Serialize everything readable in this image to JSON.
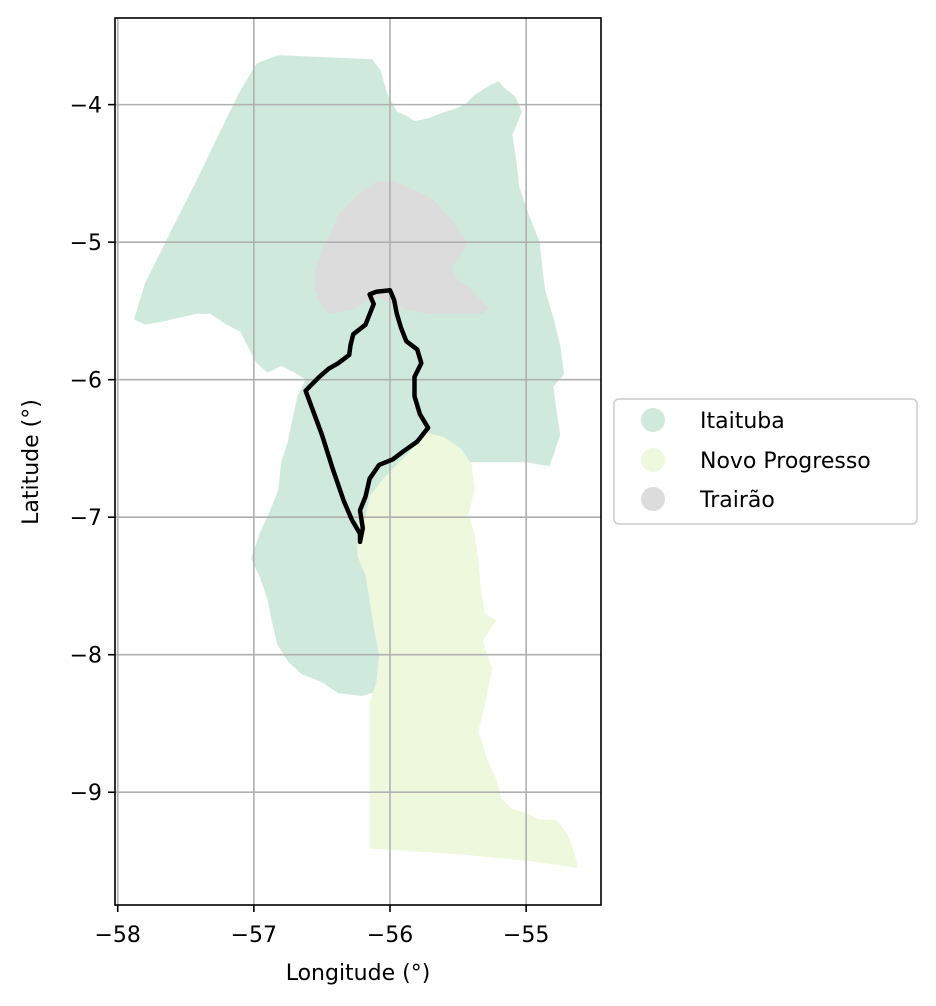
{
  "chart_data": {
    "type": "map",
    "xlabel": "Longitude (°)",
    "ylabel": "Latitude (°)",
    "xlim": [
      -58.02,
      -54.45
    ],
    "ylim": [
      -9.82,
      -3.37
    ],
    "xticks": [
      -58,
      -57,
      -56,
      -55
    ],
    "yticks": [
      -4,
      -5,
      -6,
      -7,
      -8,
      -9
    ],
    "xtick_labels": [
      "−58",
      "−57",
      "−56",
      "−55"
    ],
    "ytick_labels": [
      "−4",
      "−5",
      "−6",
      "−7",
      "−8",
      "−9"
    ],
    "grid": true,
    "legend_position": "right",
    "regions": [
      {
        "name": "Itaituba",
        "color": "#cfeadd",
        "polygons": [
          [
            [
              -56.13,
              -3.67
            ],
            [
              -56.07,
              -3.75
            ],
            [
              -56.02,
              -3.92
            ],
            [
              -55.95,
              -4.05
            ],
            [
              -55.88,
              -4.08
            ],
            [
              -55.82,
              -4.12
            ],
            [
              -55.72,
              -4.1
            ],
            [
              -55.62,
              -4.06
            ],
            [
              -55.52,
              -4.03
            ],
            [
              -55.45,
              -4.0
            ],
            [
              -55.38,
              -3.93
            ],
            [
              -55.3,
              -3.88
            ],
            [
              -55.25,
              -3.85
            ],
            [
              -55.2,
              -3.83
            ],
            [
              -55.17,
              -3.87
            ],
            [
              -55.08,
              -3.94
            ],
            [
              -55.03,
              -4.05
            ],
            [
              -55.1,
              -4.22
            ],
            [
              -55.07,
              -4.42
            ],
            [
              -55.05,
              -4.6
            ],
            [
              -54.98,
              -4.8
            ],
            [
              -54.9,
              -5.0
            ],
            [
              -54.88,
              -5.2
            ],
            [
              -54.86,
              -5.35
            ],
            [
              -54.8,
              -5.55
            ],
            [
              -54.75,
              -5.75
            ],
            [
              -54.72,
              -5.96
            ],
            [
              -54.8,
              -6.05
            ],
            [
              -54.78,
              -6.2
            ],
            [
              -54.75,
              -6.4
            ],
            [
              -54.8,
              -6.55
            ],
            [
              -54.83,
              -6.63
            ],
            [
              -55.0,
              -6.6
            ],
            [
              -55.1,
              -6.6
            ],
            [
              -55.5,
              -6.6
            ],
            [
              -55.5,
              -6.8
            ],
            [
              -55.62,
              -7.0
            ],
            [
              -55.71,
              -7.18
            ],
            [
              -55.78,
              -7.35
            ],
            [
              -55.72,
              -7.55
            ],
            [
              -55.73,
              -7.8
            ],
            [
              -55.7,
              -8.0
            ],
            [
              -55.75,
              -8.3
            ],
            [
              -55.82,
              -8.37
            ],
            [
              -55.92,
              -8.32
            ],
            [
              -56.05,
              -8.25
            ],
            [
              -56.2,
              -8.3
            ],
            [
              -56.38,
              -8.28
            ],
            [
              -56.5,
              -8.2
            ],
            [
              -56.65,
              -8.14
            ],
            [
              -56.75,
              -8.05
            ],
            [
              -56.83,
              -7.92
            ],
            [
              -56.87,
              -7.75
            ],
            [
              -56.9,
              -7.6
            ],
            [
              -56.95,
              -7.45
            ],
            [
              -57.02,
              -7.3
            ],
            [
              -56.95,
              -7.1
            ],
            [
              -56.88,
              -6.95
            ],
            [
              -56.82,
              -6.8
            ],
            [
              -56.8,
              -6.6
            ],
            [
              -56.75,
              -6.45
            ],
            [
              -56.72,
              -6.3
            ],
            [
              -56.68,
              -6.12
            ],
            [
              -56.62,
              -6.0
            ],
            [
              -56.7,
              -5.95
            ],
            [
              -56.8,
              -5.9
            ],
            [
              -56.9,
              -5.95
            ],
            [
              -56.98,
              -5.88
            ],
            [
              -57.05,
              -5.75
            ],
            [
              -57.1,
              -5.65
            ],
            [
              -57.2,
              -5.6
            ],
            [
              -57.32,
              -5.52
            ],
            [
              -57.42,
              -5.52
            ],
            [
              -57.55,
              -5.55
            ],
            [
              -57.68,
              -5.58
            ],
            [
              -57.8,
              -5.6
            ],
            [
              -57.88,
              -5.56
            ],
            [
              -57.8,
              -5.3
            ],
            [
              -57.6,
              -4.9
            ],
            [
              -57.42,
              -4.55
            ],
            [
              -57.25,
              -4.2
            ],
            [
              -57.1,
              -3.9
            ],
            [
              -56.98,
              -3.7
            ],
            [
              -56.82,
              -3.64
            ],
            [
              -56.6,
              -3.65
            ],
            [
              -56.35,
              -3.66
            ]
          ]
        ]
      },
      {
        "name": "Novo Progresso",
        "color": "#eef8dc",
        "polygons": [
          [
            [
              -55.75,
              -6.38
            ],
            [
              -55.6,
              -6.42
            ],
            [
              -55.48,
              -6.5
            ],
            [
              -55.4,
              -6.62
            ],
            [
              -55.38,
              -6.8
            ],
            [
              -55.42,
              -6.98
            ],
            [
              -55.38,
              -7.12
            ],
            [
              -55.35,
              -7.32
            ],
            [
              -55.33,
              -7.55
            ],
            [
              -55.3,
              -7.7
            ],
            [
              -55.22,
              -7.75
            ],
            [
              -55.32,
              -7.9
            ],
            [
              -55.25,
              -8.1
            ],
            [
              -55.3,
              -8.35
            ],
            [
              -55.35,
              -8.55
            ],
            [
              -55.28,
              -8.78
            ],
            [
              -55.22,
              -8.9
            ],
            [
              -55.18,
              -9.05
            ],
            [
              -55.1,
              -9.12
            ],
            [
              -55.0,
              -9.15
            ],
            [
              -54.9,
              -9.2
            ],
            [
              -54.78,
              -9.2
            ],
            [
              -54.7,
              -9.3
            ],
            [
              -54.65,
              -9.42
            ],
            [
              -54.62,
              -9.55
            ],
            [
              -54.98,
              -9.5
            ],
            [
              -55.5,
              -9.45
            ],
            [
              -56.15,
              -9.41
            ],
            [
              -56.15,
              -9.0
            ],
            [
              -56.15,
              -8.6
            ],
            [
              -56.15,
              -8.35
            ],
            [
              -56.1,
              -8.2
            ],
            [
              -56.08,
              -8.0
            ],
            [
              -56.12,
              -7.8
            ],
            [
              -56.15,
              -7.6
            ],
            [
              -56.18,
              -7.42
            ],
            [
              -56.24,
              -7.28
            ],
            [
              -56.24,
              -7.14
            ],
            [
              -56.18,
              -7.0
            ],
            [
              -56.15,
              -6.85
            ],
            [
              -56.05,
              -6.72
            ],
            [
              -55.95,
              -6.62
            ],
            [
              -55.85,
              -6.52
            ]
          ]
        ]
      },
      {
        "name": "Trairão",
        "color": "#dcdcdc",
        "polygons": [
          [
            [
              -55.98,
              -4.55
            ],
            [
              -55.87,
              -4.6
            ],
            [
              -55.73,
              -4.66
            ],
            [
              -55.65,
              -4.72
            ],
            [
              -55.6,
              -4.78
            ],
            [
              -55.53,
              -4.85
            ],
            [
              -55.48,
              -4.95
            ],
            [
              -55.42,
              -5.0
            ],
            [
              -55.48,
              -5.1
            ],
            [
              -55.55,
              -5.18
            ],
            [
              -55.5,
              -5.28
            ],
            [
              -55.42,
              -5.33
            ],
            [
              -55.35,
              -5.4
            ],
            [
              -55.28,
              -5.48
            ],
            [
              -55.32,
              -5.52
            ],
            [
              -55.48,
              -5.52
            ],
            [
              -55.6,
              -5.52
            ],
            [
              -55.72,
              -5.52
            ],
            [
              -55.85,
              -5.5
            ],
            [
              -55.98,
              -5.45
            ],
            [
              -56.1,
              -5.4
            ],
            [
              -56.2,
              -5.45
            ],
            [
              -56.3,
              -5.5
            ],
            [
              -56.45,
              -5.52
            ],
            [
              -56.5,
              -5.47
            ],
            [
              -56.55,
              -5.35
            ],
            [
              -56.55,
              -5.2
            ],
            [
              -56.5,
              -5.05
            ],
            [
              -56.43,
              -4.92
            ],
            [
              -56.38,
              -4.8
            ],
            [
              -56.3,
              -4.72
            ],
            [
              -56.2,
              -4.62
            ],
            [
              -56.1,
              -4.56
            ]
          ]
        ]
      }
    ],
    "boundary": {
      "color": "#000000",
      "points": [
        [
          -56.0,
          -5.35
        ],
        [
          -56.1,
          -5.36
        ],
        [
          -56.15,
          -5.38
        ],
        [
          -56.12,
          -5.45
        ],
        [
          -56.16,
          -5.55
        ],
        [
          -56.18,
          -5.6
        ],
        [
          -56.27,
          -5.67
        ],
        [
          -56.29,
          -5.75
        ],
        [
          -56.3,
          -5.82
        ],
        [
          -56.38,
          -5.88
        ],
        [
          -56.45,
          -5.92
        ],
        [
          -56.52,
          -5.98
        ],
        [
          -56.62,
          -6.08
        ],
        [
          -56.5,
          -6.4
        ],
        [
          -56.42,
          -6.65
        ],
        [
          -56.34,
          -6.88
        ],
        [
          -56.28,
          -7.02
        ],
        [
          -56.22,
          -7.12
        ],
        [
          -56.22,
          -7.18
        ],
        [
          -56.2,
          -7.08
        ],
        [
          -56.22,
          -6.95
        ],
        [
          -56.18,
          -6.85
        ],
        [
          -56.15,
          -6.72
        ],
        [
          -56.08,
          -6.62
        ],
        [
          -55.98,
          -6.58
        ],
        [
          -55.9,
          -6.52
        ],
        [
          -55.8,
          -6.45
        ],
        [
          -55.72,
          -6.35
        ],
        [
          -55.78,
          -6.25
        ],
        [
          -55.82,
          -6.12
        ],
        [
          -55.82,
          -5.98
        ],
        [
          -55.77,
          -5.88
        ],
        [
          -55.8,
          -5.78
        ],
        [
          -55.88,
          -5.72
        ],
        [
          -55.92,
          -5.62
        ],
        [
          -55.95,
          -5.52
        ],
        [
          -55.97,
          -5.42
        ]
      ]
    }
  },
  "legend": {
    "items": [
      {
        "label": "Itaituba",
        "color": "#cfeadd"
      },
      {
        "label": "Novo Progresso",
        "color": "#eef8dc"
      },
      {
        "label": "Trairão",
        "color": "#dcdcdc"
      }
    ]
  }
}
